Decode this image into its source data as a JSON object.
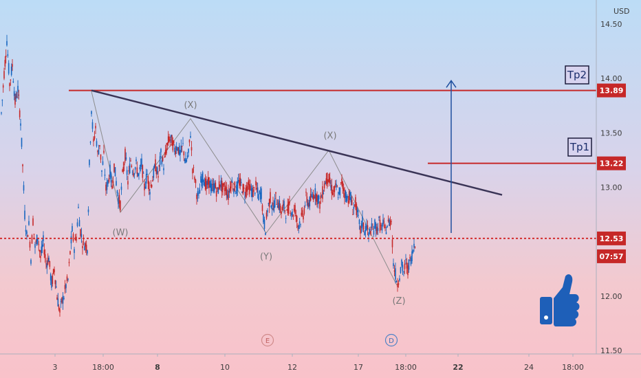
{
  "chart_data": {
    "type": "candlestick",
    "currency": "USD",
    "ylim": [
      11.5,
      14.6
    ],
    "y_ticks": [
      "14.50",
      "14.00",
      "13.50",
      "13.00",
      "12.50",
      "12.00",
      "11.50"
    ],
    "x_ticks": [
      "3",
      "18:00",
      "8",
      "10",
      "12",
      "17",
      "18:00",
      "22",
      "24",
      "18:00"
    ],
    "x_tick_bold": [
      false,
      false,
      true,
      false,
      false,
      false,
      false,
      true,
      false,
      false
    ],
    "levels": [
      {
        "label": "Tp2",
        "price": 13.89,
        "price_label": "13.89",
        "color": "#c62828"
      },
      {
        "label": "Tp1",
        "price": 13.22,
        "price_label": "13.22",
        "color": "#c62828"
      }
    ],
    "current_price": {
      "value": 12.53,
      "label": "12.53",
      "countdown": "07:57",
      "color": "#d32f2f"
    },
    "trendline": {
      "from": [
        133,
        13.89
      ],
      "to": [
        730,
        12.93
      ]
    },
    "target_arrow": {
      "x": 656,
      "from": 12.58,
      "to": 13.98
    },
    "wave_points": [
      [
        133,
        13.88
      ],
      [
        175,
        12.77
      ],
      [
        277,
        13.63
      ],
      [
        387,
        12.58
      ],
      [
        478,
        13.34
      ],
      [
        577,
        12.1
      ]
    ],
    "wave_labels": [
      {
        "text": "(W)",
        "t": 175,
        "price": 12.59
      },
      {
        "text": "(X)",
        "t": 277,
        "price": 13.76
      },
      {
        "text": "(Y)",
        "t": 387,
        "price": 12.37
      },
      {
        "text": "(X)",
        "t": 480,
        "price": 13.48
      },
      {
        "text": "(Z)",
        "t": 580,
        "price": 11.96
      }
    ],
    "event_markers": [
      "E",
      "D"
    ],
    "price_series": [
      [
        2,
        13.68
      ],
      [
        6,
        14.05
      ],
      [
        10,
        14.35
      ],
      [
        14,
        13.95
      ],
      [
        18,
        14.12
      ],
      [
        22,
        13.78
      ],
      [
        26,
        13.9
      ],
      [
        30,
        13.6
      ],
      [
        33,
        13.2
      ],
      [
        36,
        12.75
      ],
      [
        39,
        12.55
      ],
      [
        42,
        12.65
      ],
      [
        45,
        12.35
      ],
      [
        48,
        12.7
      ],
      [
        51,
        12.45
      ],
      [
        55,
        12.55
      ],
      [
        59,
        12.35
      ],
      [
        63,
        12.5
      ],
      [
        67,
        12.3
      ],
      [
        71,
        12.35
      ],
      [
        75,
        12.1
      ],
      [
        79,
        12.25
      ],
      [
        83,
        12.0
      ],
      [
        87,
        11.85
      ],
      [
        90,
        11.95
      ],
      [
        93,
        12.0
      ],
      [
        96,
        12.1
      ],
      [
        99,
        12.15
      ],
      [
        102,
        12.4
      ],
      [
        105,
        12.6
      ],
      [
        108,
        12.45
      ],
      [
        111,
        12.55
      ],
      [
        114,
        12.8
      ],
      [
        117,
        12.6
      ],
      [
        120,
        12.5
      ],
      [
        123,
        12.48
      ],
      [
        127,
        12.45
      ],
      [
        130,
        13.2
      ],
      [
        133,
        13.72
      ],
      [
        136,
        13.4
      ],
      [
        139,
        13.55
      ],
      [
        142,
        13.3
      ],
      [
        145,
        13.4
      ],
      [
        148,
        13.15
      ],
      [
        151,
        13.28
      ],
      [
        154,
        12.98
      ],
      [
        157,
        13.05
      ],
      [
        160,
        13.15
      ],
      [
        163,
        13.0
      ],
      [
        166,
        13.2
      ],
      [
        169,
        13.05
      ],
      [
        172,
        12.9
      ],
      [
        175,
        12.85
      ],
      [
        178,
        13.1
      ],
      [
        182,
        13.3
      ],
      [
        186,
        13.05
      ],
      [
        190,
        13.25
      ],
      [
        194,
        13.15
      ],
      [
        198,
        13.2
      ],
      [
        202,
        13.1
      ],
      [
        206,
        13.22
      ],
      [
        210,
        13.0
      ],
      [
        214,
        13.12
      ],
      [
        218,
        12.98
      ],
      [
        222,
        13.08
      ],
      [
        226,
        13.2
      ],
      [
        230,
        13.1
      ],
      [
        234,
        13.3
      ],
      [
        238,
        13.2
      ],
      [
        242,
        13.35
      ],
      [
        246,
        13.45
      ],
      [
        250,
        13.42
      ],
      [
        254,
        13.35
      ],
      [
        258,
        13.38
      ],
      [
        262,
        13.3
      ],
      [
        266,
        13.38
      ],
      [
        270,
        13.22
      ],
      [
        274,
        13.3
      ],
      [
        277,
        13.5
      ],
      [
        280,
        13.18
      ],
      [
        283,
        13.1
      ],
      [
        286,
        12.95
      ],
      [
        289,
        12.9
      ],
      [
        292,
        13.05
      ],
      [
        296,
        13.1
      ],
      [
        300,
        13.0
      ],
      [
        304,
        13.05
      ],
      [
        308,
        12.98
      ],
      [
        312,
        13.02
      ],
      [
        316,
        12.95
      ],
      [
        320,
        13.05
      ],
      [
        324,
        12.98
      ],
      [
        328,
        13.0
      ],
      [
        332,
        12.92
      ],
      [
        336,
        13.05
      ],
      [
        340,
        13.0
      ],
      [
        344,
        12.98
      ],
      [
        348,
        13.05
      ],
      [
        352,
        13.0
      ],
      [
        356,
        12.95
      ],
      [
        360,
        13.02
      ],
      [
        364,
        12.98
      ],
      [
        368,
        12.95
      ],
      [
        372,
        13.0
      ],
      [
        376,
        12.92
      ],
      [
        380,
        12.95
      ],
      [
        383,
        12.7
      ],
      [
        386,
        12.62
      ],
      [
        389,
        12.8
      ],
      [
        393,
        12.9
      ],
      [
        397,
        12.8
      ],
      [
        401,
        12.9
      ],
      [
        405,
        12.85
      ],
      [
        409,
        12.78
      ],
      [
        413,
        12.82
      ],
      [
        417,
        12.75
      ],
      [
        421,
        12.85
      ],
      [
        425,
        12.75
      ],
      [
        429,
        12.8
      ],
      [
        433,
        12.65
      ],
      [
        437,
        12.7
      ],
      [
        441,
        12.75
      ],
      [
        445,
        12.9
      ],
      [
        449,
        12.85
      ],
      [
        453,
        12.9
      ],
      [
        457,
        12.95
      ],
      [
        461,
        12.92
      ],
      [
        465,
        12.85
      ],
      [
        469,
        12.95
      ],
      [
        473,
        13.05
      ],
      [
        477,
        13.1
      ],
      [
        481,
        13.0
      ],
      [
        485,
        12.95
      ],
      [
        489,
        13.0
      ],
      [
        493,
        12.92
      ],
      [
        497,
        13.05
      ],
      [
        501,
        12.95
      ],
      [
        505,
        12.9
      ],
      [
        509,
        12.92
      ],
      [
        513,
        12.8
      ],
      [
        517,
        12.85
      ],
      [
        521,
        12.7
      ],
      [
        524,
        12.6
      ],
      [
        527,
        12.68
      ],
      [
        530,
        12.6
      ],
      [
        533,
        12.65
      ],
      [
        536,
        12.55
      ],
      [
        539,
        12.62
      ],
      [
        542,
        12.6
      ],
      [
        545,
        12.65
      ],
      [
        548,
        12.62
      ],
      [
        551,
        12.68
      ],
      [
        554,
        12.62
      ],
      [
        557,
        12.66
      ],
      [
        560,
        12.6
      ],
      [
        563,
        12.65
      ],
      [
        566,
        12.68
      ],
      [
        569,
        12.7
      ],
      [
        572,
        12.3
      ],
      [
        575,
        12.2
      ],
      [
        578,
        12.12
      ],
      [
        581,
        12.2
      ],
      [
        584,
        12.28
      ],
      [
        587,
        12.22
      ],
      [
        590,
        12.3
      ],
      [
        593,
        12.25
      ],
      [
        596,
        12.32
      ],
      [
        599,
        12.38
      ],
      [
        602,
        12.48
      ],
      [
        605,
        12.53
      ]
    ]
  }
}
